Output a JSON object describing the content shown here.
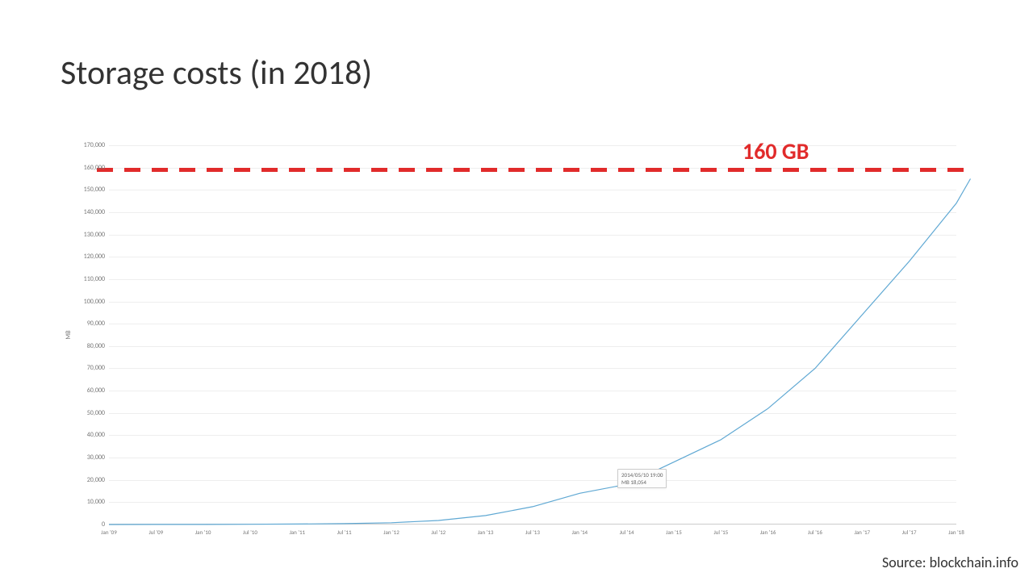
{
  "title": "Storage costs (in 2018)",
  "source": "Source: blockchain.info",
  "annotation": {
    "text": "160 GB",
    "color": "#e12b2b",
    "y_value": 160000,
    "font_size": 28
  },
  "reference_line": {
    "y_value": 160000,
    "color": "#e12b2b",
    "dash_width": 5,
    "dash_gap": 14,
    "dash_len": 20
  },
  "chart": {
    "type": "line",
    "background_color": "#ffffff",
    "grid_color": "#eeeeee",
    "line_color": "#5fa8d3",
    "line_width": 1.2,
    "ylim": [
      0,
      170000
    ],
    "ytick_step": 10000,
    "y_tick_labels": [
      "0",
      "10,000",
      "20,000",
      "30,000",
      "40,000",
      "50,000",
      "60,000",
      "70,000",
      "80,000",
      "90,000",
      "100,000",
      "110,000",
      "120,000",
      "130,000",
      "140,000",
      "150,000",
      "160,000",
      "170,000"
    ],
    "y_axis_label": "MB",
    "x_labels": [
      "Jan '09",
      "Jul '09",
      "Jan '10",
      "Jul '10",
      "Jan '11",
      "Jul '11",
      "Jan '12",
      "Jul '12",
      "Jan '13",
      "Jul '13",
      "Jan '14",
      "Jul '14",
      "Jan '15",
      "Jul '15",
      "Jan '16",
      "Jul '16",
      "Jan '17",
      "Jul '17",
      "Jan '18"
    ],
    "x_values": [
      0,
      1,
      2,
      3,
      4,
      5,
      6,
      7,
      8,
      9,
      10,
      11,
      12,
      13,
      14,
      15,
      16,
      17,
      18,
      18.3
    ],
    "y_values": [
      0,
      20,
      50,
      100,
      200,
      400,
      800,
      1800,
      4000,
      8000,
      14000,
      18000,
      28000,
      38000,
      52000,
      70000,
      94000,
      118000,
      144000,
      155000
    ],
    "tooltip": {
      "x_value": 10.8,
      "y_value": 17000,
      "line1": "2014/05/10 19:00",
      "line2": "MB 18,054"
    }
  },
  "colors": {
    "text_dark": "#333333",
    "text_light": "#777777"
  }
}
